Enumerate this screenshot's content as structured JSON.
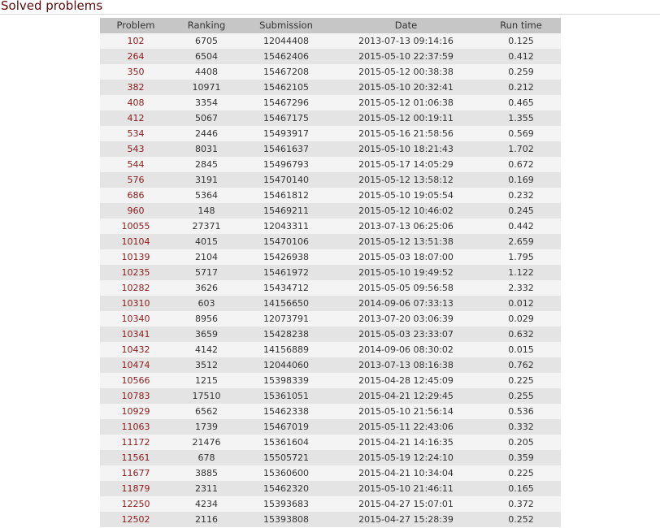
{
  "section": {
    "title": "Solved problems"
  },
  "table": {
    "headers": [
      "Problem",
      "Ranking",
      "Submission",
      "Date",
      "Run time"
    ],
    "rows": [
      [
        "102",
        "6705",
        "12044408",
        "2013-07-13 09:14:16",
        "0.125"
      ],
      [
        "264",
        "6504",
        "15462406",
        "2015-05-10 22:37:59",
        "0.412"
      ],
      [
        "350",
        "4408",
        "15467208",
        "2015-05-12 00:38:38",
        "0.259"
      ],
      [
        "382",
        "10971",
        "15462105",
        "2015-05-10 20:32:41",
        "0.212"
      ],
      [
        "408",
        "3354",
        "15467296",
        "2015-05-12 01:06:38",
        "0.465"
      ],
      [
        "412",
        "5067",
        "15467175",
        "2015-05-12 00:19:11",
        "1.355"
      ],
      [
        "534",
        "2446",
        "15493917",
        "2015-05-16 21:58:56",
        "0.569"
      ],
      [
        "543",
        "8031",
        "15461637",
        "2015-05-10 18:21:43",
        "1.702"
      ],
      [
        "544",
        "2845",
        "15496793",
        "2015-05-17 14:05:29",
        "0.672"
      ],
      [
        "576",
        "3191",
        "15470140",
        "2015-05-12 13:58:12",
        "0.169"
      ],
      [
        "686",
        "5364",
        "15461812",
        "2015-05-10 19:05:54",
        "0.232"
      ],
      [
        "960",
        "148",
        "15469211",
        "2015-05-12 10:46:02",
        "0.245"
      ],
      [
        "10055",
        "27371",
        "12043311",
        "2013-07-13 06:25:06",
        "0.442"
      ],
      [
        "10104",
        "4015",
        "15470106",
        "2015-05-12 13:51:38",
        "2.659"
      ],
      [
        "10139",
        "2104",
        "15426938",
        "2015-05-03 18:07:00",
        "1.795"
      ],
      [
        "10235",
        "5717",
        "15461972",
        "2015-05-10 19:49:52",
        "1.122"
      ],
      [
        "10282",
        "3626",
        "15434712",
        "2015-05-05 09:56:58",
        "2.332"
      ],
      [
        "10310",
        "603",
        "14156650",
        "2014-09-06 07:33:13",
        "0.012"
      ],
      [
        "10340",
        "8956",
        "12073791",
        "2013-07-20 03:06:39",
        "0.029"
      ],
      [
        "10341",
        "3659",
        "15428238",
        "2015-05-03 23:33:07",
        "0.632"
      ],
      [
        "10432",
        "4142",
        "14156889",
        "2014-09-06 08:30:02",
        "0.015"
      ],
      [
        "10474",
        "3512",
        "12044060",
        "2013-07-13 08:16:38",
        "0.762"
      ],
      [
        "10566",
        "1215",
        "15398339",
        "2015-04-28 12:45:09",
        "0.225"
      ],
      [
        "10783",
        "17510",
        "15361051",
        "2015-04-21 12:29:45",
        "0.255"
      ],
      [
        "10929",
        "6562",
        "15462338",
        "2015-05-10 21:56:14",
        "0.536"
      ],
      [
        "11063",
        "1739",
        "15467019",
        "2015-05-11 22:43:06",
        "0.332"
      ],
      [
        "11172",
        "21476",
        "15361604",
        "2015-04-21 14:16:35",
        "0.205"
      ],
      [
        "11561",
        "678",
        "15505721",
        "2015-05-19 12:24:10",
        "0.359"
      ],
      [
        "11677",
        "3885",
        "15360600",
        "2015-04-21 10:34:04",
        "0.225"
      ],
      [
        "11879",
        "2311",
        "15462320",
        "2015-05-10 21:46:11",
        "0.165"
      ],
      [
        "12250",
        "4234",
        "15393683",
        "2015-04-27 15:07:01",
        "0.372"
      ],
      [
        "12502",
        "2116",
        "15393808",
        "2015-04-27 15:28:39",
        "0.252"
      ]
    ]
  },
  "colors": {
    "title": "#5a0a0a",
    "problem_link": "#8b1a1a",
    "header_bg": "#c6c6c6",
    "row_odd": "#f4f4f4",
    "row_even": "#e4e4e4"
  }
}
